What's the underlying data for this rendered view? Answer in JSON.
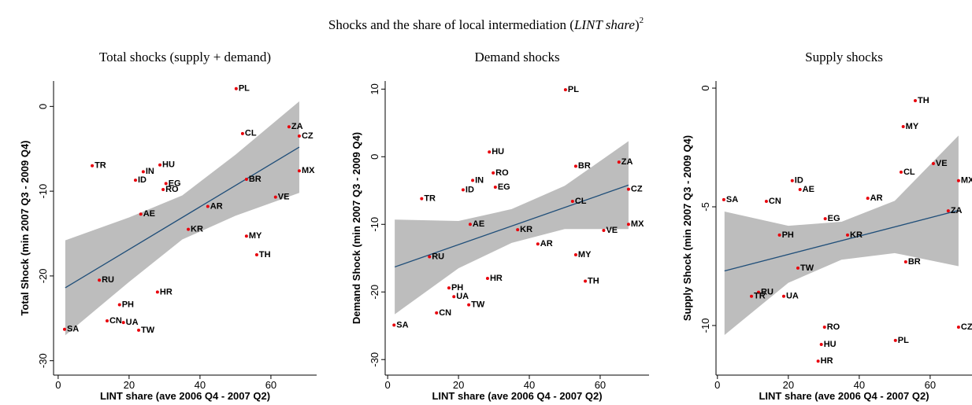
{
  "title": {
    "text": "Shocks and the share of local intermediation (",
    "emphasis": "LINT share",
    "close": ")",
    "note": "2"
  },
  "chart_data": [
    {
      "type": "scatter",
      "title": "Total shocks (supply + demand)",
      "x_label": "LINT share (ave 2006 Q4 - 2007 Q2)",
      "y_label": "Total Shock (min 2007 Q3 - 2009 Q4)",
      "labels": [
        "PL",
        "ZA",
        "CZ",
        "CL",
        "HU",
        "TR",
        "IN",
        "EG",
        "ID",
        "RO",
        "BR",
        "MX",
        "VE",
        "AR",
        "AE",
        "KR",
        "MY",
        "TH",
        "RU",
        "HR",
        "PH",
        "CN",
        "UA",
        "TW",
        "SA"
      ],
      "x": [
        50.2,
        65.1,
        68,
        52,
        28.7,
        9.6,
        24,
        30.4,
        21.8,
        29.6,
        53.1,
        68,
        61.3,
        42.2,
        23.3,
        36.7,
        53.1,
        56,
        11.6,
        28,
        17.3,
        13.8,
        18.4,
        22.7,
        1.8
      ],
      "values": [
        2.1,
        -2.4,
        -3.5,
        -3.2,
        -6.9,
        -7,
        -7.7,
        -9.1,
        -8.7,
        -9.8,
        -8.6,
        -7.6,
        -10.7,
        -11.8,
        -12.7,
        -14.5,
        -15.3,
        -17.5,
        -20.5,
        -21.9,
        -23.4,
        -25.3,
        -25.5,
        -26.4,
        -26.3
      ],
      "color": "#e8000b",
      "fit": {
        "x": [
          2,
          68
        ],
        "values": [
          -21.4,
          -4.8
        ],
        "color": "#1f4e79"
      },
      "band": {
        "x": [
          2,
          20,
          35,
          50,
          68
        ],
        "upper": [
          -15.8,
          -13.1,
          -10.5,
          -5.7,
          0.6
        ],
        "lower": [
          -27,
          -20.7,
          -15.7,
          -12.9,
          -10.2
        ],
        "color": "#bdbdbd"
      },
      "xlim": [
        -1.3,
        72.9
      ],
      "ylim": [
        -31.7,
        3
      ],
      "xticks": [
        0,
        20,
        40,
        60
      ],
      "yticks": [
        -30,
        -20,
        -10,
        0
      ]
    },
    {
      "type": "scatter",
      "title": "Demand shocks",
      "x_label": "LINT share (ave 2006 Q4 - 2007 Q2)",
      "y_label": "Demand Shock (min 2007 Q3 - 2009 Q4)",
      "labels": [
        "PL",
        "HU",
        "BR",
        "ZA",
        "RO",
        "IN",
        "EG",
        "ID",
        "CZ",
        "TR",
        "CL",
        "AE",
        "KR",
        "MX",
        "VE",
        "AR",
        "MY",
        "RU",
        "HR",
        "TH",
        "PH",
        "UA",
        "TW",
        "CN",
        "SA"
      ],
      "x": [
        50.2,
        28.7,
        53.1,
        65.3,
        29.8,
        24,
        30.4,
        21.3,
        68,
        9.6,
        52.2,
        23.3,
        36.7,
        68,
        61,
        42.4,
        53.1,
        11.8,
        28.2,
        55.8,
        17.3,
        18.7,
        22.9,
        13.8,
        1.8
      ],
      "values": [
        9.9,
        0.7,
        -1.4,
        -0.8,
        -2.4,
        -3.5,
        -4.5,
        -4.9,
        -4.8,
        -6.2,
        -6.6,
        -10,
        -10.8,
        -10,
        -10.9,
        -12.9,
        -14.5,
        -14.8,
        -18,
        -18.4,
        -19.4,
        -20.7,
        -21.9,
        -23.1,
        -24.9
      ],
      "color": "#e8000b",
      "fit": {
        "x": [
          2,
          68
        ],
        "values": [
          -16.3,
          -4.2
        ],
        "color": "#1f4e79"
      },
      "band": {
        "x": [
          2,
          20,
          35,
          50,
          68
        ],
        "upper": [
          -9.3,
          -9.5,
          -7.75,
          -4.3,
          2.3
        ],
        "lower": [
          -23.3,
          -16.5,
          -12.75,
          -10.7,
          -10.7
        ],
        "color": "#bdbdbd"
      },
      "xlim": [
        -0.7,
        73.8
      ],
      "ylim": [
        -32.3,
        11.2
      ],
      "xticks": [
        0,
        20,
        40,
        60
      ],
      "yticks": [
        -30,
        -20,
        -10,
        0,
        10
      ]
    },
    {
      "type": "scatter",
      "title": "Supply shocks",
      "x_label": "LINT share (ave 2006 Q4 - 2007 Q2)",
      "y_label": "Supply Shock (min 2007 Q3 - 2009 Q4)",
      "labels": [
        "TH",
        "MY",
        "ID",
        "CL",
        "VE",
        "AE",
        "MX",
        "SA",
        "CN",
        "AR",
        "ZA",
        "EG",
        "PH",
        "KR",
        "TW",
        "BR",
        "RU",
        "TR",
        "UA",
        "RO",
        "CZ",
        "PL",
        "HU",
        "HR"
      ],
      "x": [
        55.8,
        52.4,
        21.1,
        51.8,
        60.9,
        23.3,
        68,
        1.8,
        13.8,
        42.4,
        65.1,
        30.4,
        17.5,
        36.7,
        22.7,
        53.1,
        11.6,
        9.6,
        18.7,
        30.2,
        68,
        50.2,
        29.3,
        28.4
      ],
      "values": [
        -0.53,
        -1.62,
        -3.9,
        -3.54,
        -3.18,
        -4.27,
        -3.9,
        -4.7,
        -4.77,
        -4.64,
        -5.17,
        -5.5,
        -6.19,
        -6.19,
        -7.58,
        -7.32,
        -8.6,
        -8.77,
        -8.77,
        -10.07,
        -10.07,
        -10.63,
        -10.8,
        -11.5
      ],
      "color": "#e8000b",
      "fit": {
        "x": [
          2,
          68
        ],
        "values": [
          -7.7,
          -5.15
        ],
        "color": "#1f4e79"
      },
      "band": {
        "x": [
          2,
          20,
          35,
          50,
          68
        ],
        "upper": [
          -5.2,
          -5.8,
          -5.63,
          -4.75,
          -2.0
        ],
        "lower": [
          -10.4,
          -8.2,
          -7.23,
          -6.95,
          -7.5
        ],
        "color": "#bdbdbd"
      },
      "xlim": [
        -0.4,
        71.8
      ],
      "ylim": [
        -12.09,
        0.3
      ],
      "xticks": [
        0,
        20,
        40,
        60
      ],
      "yticks": [
        -10,
        -5,
        0
      ]
    }
  ]
}
